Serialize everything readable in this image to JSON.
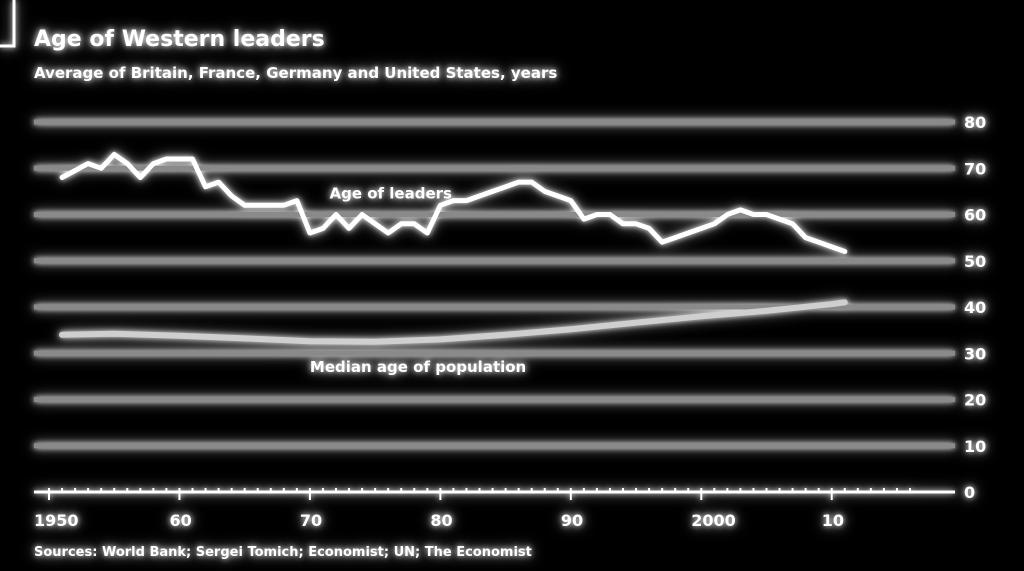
{
  "chart_data": {
    "type": "line",
    "title": "Age of Western leaders",
    "subtitle": "Average of Britain, France, Germany and United States, years",
    "source": "Sources: World Bank; Sergei Tomich; Economist; UN; The Economist",
    "ylim": [
      0,
      80
    ],
    "yticks": [
      "0",
      "10",
      "20",
      "30",
      "40",
      "50",
      "60",
      "70",
      "80"
    ],
    "xlim": [
      1950,
      2016
    ],
    "xticks": [
      {
        "year": 1950,
        "label": "1950"
      },
      {
        "year": 1960,
        "label": "60"
      },
      {
        "year": 1970,
        "label": "70"
      },
      {
        "year": 1980,
        "label": "80"
      },
      {
        "year": 1990,
        "label": "90"
      },
      {
        "year": 2000,
        "label": "2000"
      },
      {
        "year": 2010,
        "label": "10"
      }
    ],
    "grid": true,
    "series": [
      {
        "name": "Age of leaders",
        "x": [
          1951,
          1953,
          1954,
          1955,
          1956,
          1957,
          1958,
          1959,
          1960,
          1961,
          1962,
          1963,
          1964,
          1965,
          1966,
          1967,
          1968,
          1969,
          1970,
          1971,
          1972,
          1973,
          1974,
          1975,
          1976,
          1977,
          1978,
          1979,
          1980,
          1981,
          1982,
          1983,
          1984,
          1985,
          1986,
          1987,
          1988,
          1989,
          1990,
          1991,
          1992,
          1993,
          1994,
          1995,
          1996,
          1997,
          1998,
          1999,
          2000,
          2001,
          2002,
          2003,
          2004,
          2005,
          2006,
          2007,
          2008,
          2009,
          2010,
          2011
        ],
        "values": [
          68,
          71,
          70,
          73,
          71,
          68,
          71,
          72,
          72,
          72,
          66,
          67,
          64,
          62,
          62,
          62,
          62,
          63,
          56,
          57,
          60,
          57,
          60,
          58,
          56,
          58,
          58,
          56,
          62,
          63,
          63,
          64,
          65,
          66,
          67,
          67,
          65,
          64,
          63,
          59,
          60,
          60,
          58,
          58,
          57,
          54,
          55,
          56,
          57,
          58,
          60,
          61,
          60,
          60,
          59,
          58,
          55,
          54,
          53,
          52
        ]
      },
      {
        "name": "Median age of population",
        "x": [
          1951,
          1955,
          1960,
          1965,
          1970,
          1975,
          1980,
          1985,
          1990,
          1995,
          2000,
          2005,
          2010,
          2011
        ],
        "values": [
          34,
          34.2,
          33.8,
          33.2,
          32.6,
          32.5,
          33.0,
          34.0,
          35.2,
          36.6,
          38.0,
          39.2,
          40.6,
          41.0
        ]
      }
    ],
    "annotations": [
      {
        "text": "Age of leaders",
        "series": 0,
        "x": 1971.5,
        "y": 63.5
      },
      {
        "text": "Median age of population",
        "series": 1,
        "x": 1970,
        "y": 26
      }
    ]
  }
}
